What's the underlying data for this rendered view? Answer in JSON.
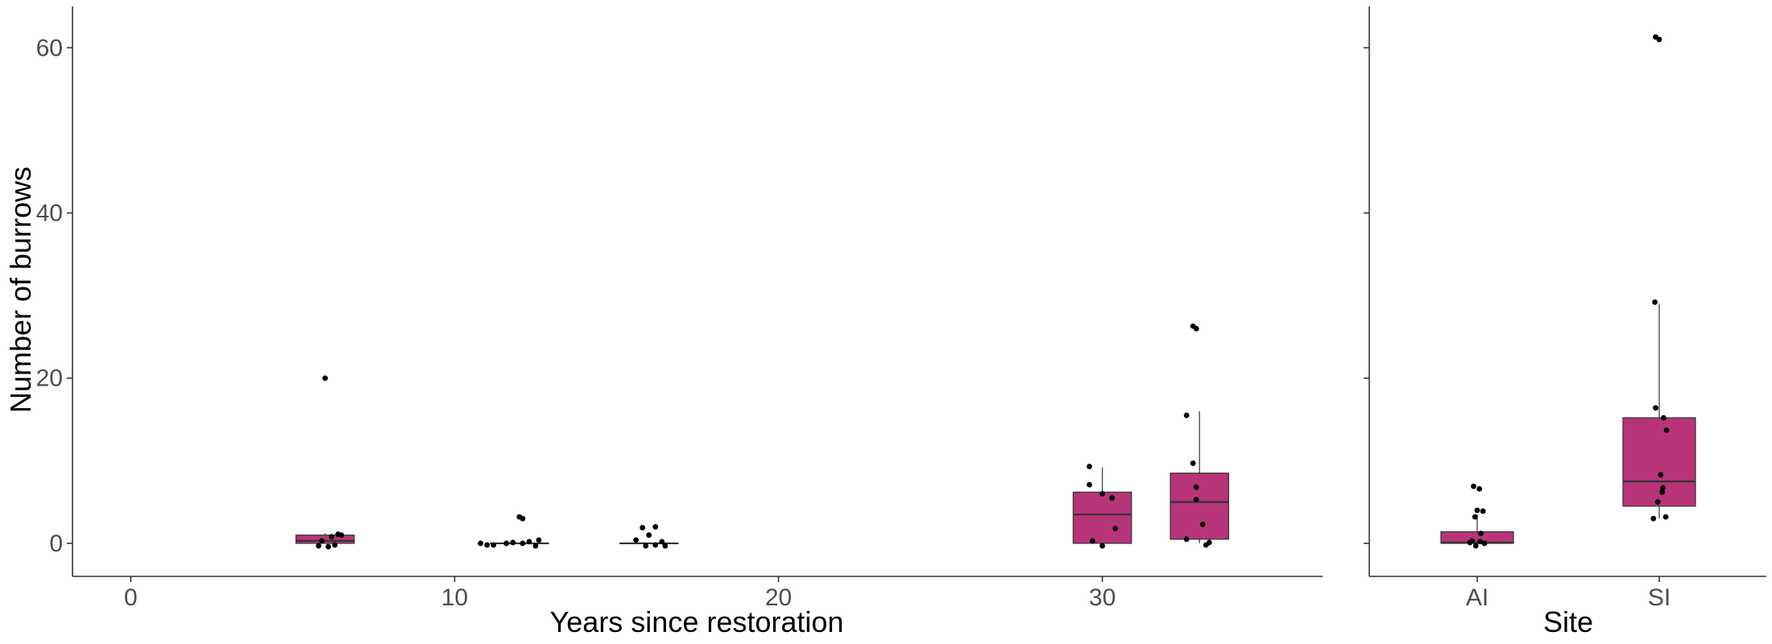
{
  "colors": {
    "box_fill": "#B83478",
    "box_stroke": "#333333",
    "point": "#000000",
    "axis": "#333333"
  },
  "chart_data": [
    {
      "type": "box",
      "ylabel": "Number of burrows",
      "xlabel": "Years since restoration",
      "xlim": [
        -1.8,
        36.8
      ],
      "ylim": [
        -4,
        65
      ],
      "x_ticks": [
        "0",
        "10",
        "20",
        "30"
      ],
      "x_tick_values": [
        0,
        10,
        20,
        30
      ],
      "y_ticks": [
        "0",
        "20",
        "40",
        "60"
      ],
      "y_tick_values": [
        0,
        20,
        40,
        60
      ],
      "grid": false,
      "boxes": [
        {
          "x": 6,
          "q1": 0,
          "median": 0.3,
          "q3": 1,
          "whisker_low": 0,
          "whisker_high": 1.2,
          "points": [
            [
              5.8,
              -0.3
            ],
            [
              6.1,
              -0.4
            ],
            [
              6.3,
              -0.2
            ],
            [
              5.9,
              0.3
            ],
            [
              6.4,
              1.1
            ],
            [
              6.2,
              0.8
            ],
            [
              6.5,
              1.0
            ],
            [
              6,
              20
            ]
          ]
        },
        {
          "x": 12,
          "q1": 0,
          "median": 0,
          "q3": 0,
          "whisker_low": 0,
          "whisker_high": 0,
          "points": [
            [
              10.8,
              0
            ],
            [
              11,
              -0.2
            ],
            [
              11.2,
              -0.2
            ],
            [
              11.6,
              0
            ],
            [
              11.8,
              0.1
            ],
            [
              12.1,
              0
            ],
            [
              12.3,
              0.2
            ],
            [
              12.5,
              -0.3
            ],
            [
              12.6,
              0.4
            ],
            [
              12,
              3.2
            ],
            [
              12.1,
              3
            ]
          ]
        },
        {
          "x": 16,
          "q1": 0,
          "median": 0,
          "q3": 0,
          "whisker_low": 0,
          "whisker_high": 0,
          "points": [
            [
              15.6,
              0.4
            ],
            [
              15.9,
              -0.3
            ],
            [
              16.2,
              -0.2
            ],
            [
              16.5,
              -0.3
            ],
            [
              15.8,
              1.9
            ],
            [
              16.2,
              2
            ],
            [
              16,
              1
            ],
            [
              16.4,
              0.2
            ]
          ]
        },
        {
          "x": 30,
          "q1": 0,
          "median": 3.5,
          "q3": 6.2,
          "whisker_low": 0,
          "whisker_high": 9.2,
          "points": [
            [
              29.6,
              9.3
            ],
            [
              29.6,
              7.1
            ],
            [
              30,
              6
            ],
            [
              30.3,
              5.5
            ],
            [
              30.4,
              1.8
            ],
            [
              29.7,
              0.3
            ],
            [
              30,
              -0.3
            ]
          ]
        },
        {
          "x": 33,
          "q1": 0.5,
          "median": 5,
          "q3": 8.5,
          "whisker_low": 0,
          "whisker_high": 16,
          "points": [
            [
              32.6,
              15.5
            ],
            [
              32.8,
              26.3
            ],
            [
              32.9,
              26
            ],
            [
              32.8,
              9.7
            ],
            [
              32.9,
              6.8
            ],
            [
              32.9,
              5.3
            ],
            [
              33.1,
              2.3
            ],
            [
              32.6,
              0.5
            ],
            [
              33.2,
              -0.2
            ],
            [
              33.3,
              0.1
            ]
          ]
        }
      ]
    },
    {
      "type": "box",
      "xlabel": "Site",
      "categories": [
        "AI",
        "SI"
      ],
      "ylim": [
        -4,
        65
      ],
      "y_tick_values": [
        0,
        20,
        40,
        60
      ],
      "grid": false,
      "boxes": [
        {
          "category": "AI",
          "q1": 0,
          "median": 0.1,
          "q3": 1.4,
          "whisker_low": 0,
          "whisker_high": 3.5,
          "points": [
            [
              -0.05,
              6.9
            ],
            [
              0.03,
              6.6
            ],
            [
              0.0,
              4
            ],
            [
              0.08,
              3.9
            ],
            [
              -0.03,
              3.2
            ],
            [
              0.05,
              1.2
            ],
            [
              -0.07,
              0.3
            ],
            [
              -0.02,
              -0.3
            ],
            [
              0.04,
              0.2
            ],
            [
              0.1,
              0
            ],
            [
              -0.1,
              0.1
            ]
          ]
        },
        {
          "category": "SI",
          "q1": 4.5,
          "median": 7.5,
          "q3": 15.2,
          "whisker_low": 3,
          "whisker_high": 29,
          "points": [
            [
              -0.05,
              61.3
            ],
            [
              0.0,
              61
            ],
            [
              -0.06,
              29.2
            ],
            [
              -0.05,
              16.4
            ],
            [
              0.06,
              15.2
            ],
            [
              0.1,
              13.7
            ],
            [
              0.05,
              6.7
            ],
            [
              0.04,
              6.2
            ],
            [
              0.02,
              8.3
            ],
            [
              -0.02,
              5
            ],
            [
              -0.08,
              3
            ],
            [
              0.09,
              3.2
            ]
          ]
        }
      ]
    }
  ]
}
